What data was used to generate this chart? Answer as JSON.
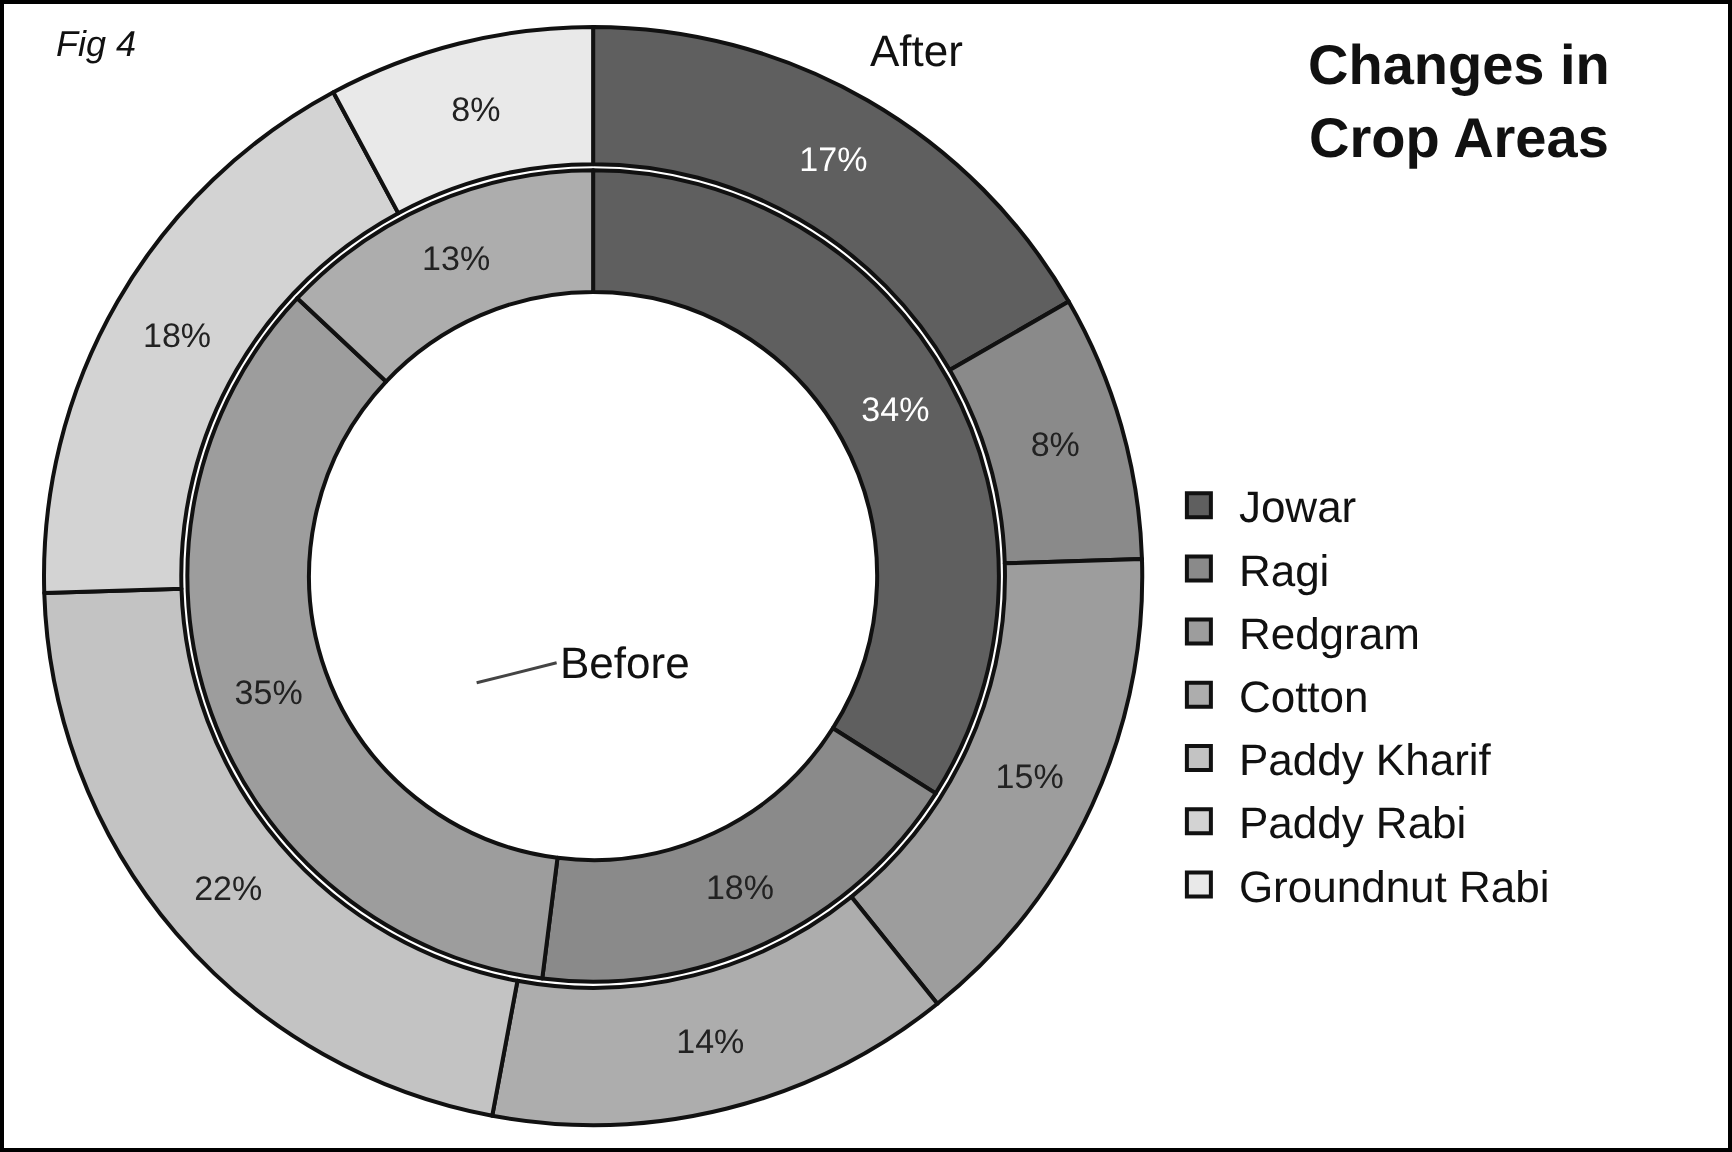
{
  "chart_data": {
    "type": "donut",
    "title": "Changes in Crop Areas",
    "annotations": [
      "Fig 4"
    ],
    "categories": [
      "Jowar",
      "Ragi",
      "Redgram",
      "Cotton",
      "Paddy Kharif",
      "Paddy Rabi",
      "Groundnut Rabi"
    ],
    "colors": [
      "#5f5f5f",
      "#8a8a8a",
      "#9d9d9d",
      "#adadad",
      "#c3c3c3",
      "#d3d3d3",
      "#e9e9e9"
    ],
    "series": [
      {
        "name": "After",
        "values": [
          17,
          8,
          15,
          14,
          22,
          18,
          8
        ],
        "value_labels": [
          "17%",
          "8%",
          "15%",
          "14%",
          "22%",
          "18%",
          "8%"
        ]
      },
      {
        "name": "Before",
        "values": [
          34,
          18,
          35,
          13,
          null,
          null,
          null
        ],
        "value_labels": [
          "34%",
          "18%",
          "35%",
          "13%",
          null,
          null,
          null
        ]
      }
    ],
    "legend": "right"
  }
}
